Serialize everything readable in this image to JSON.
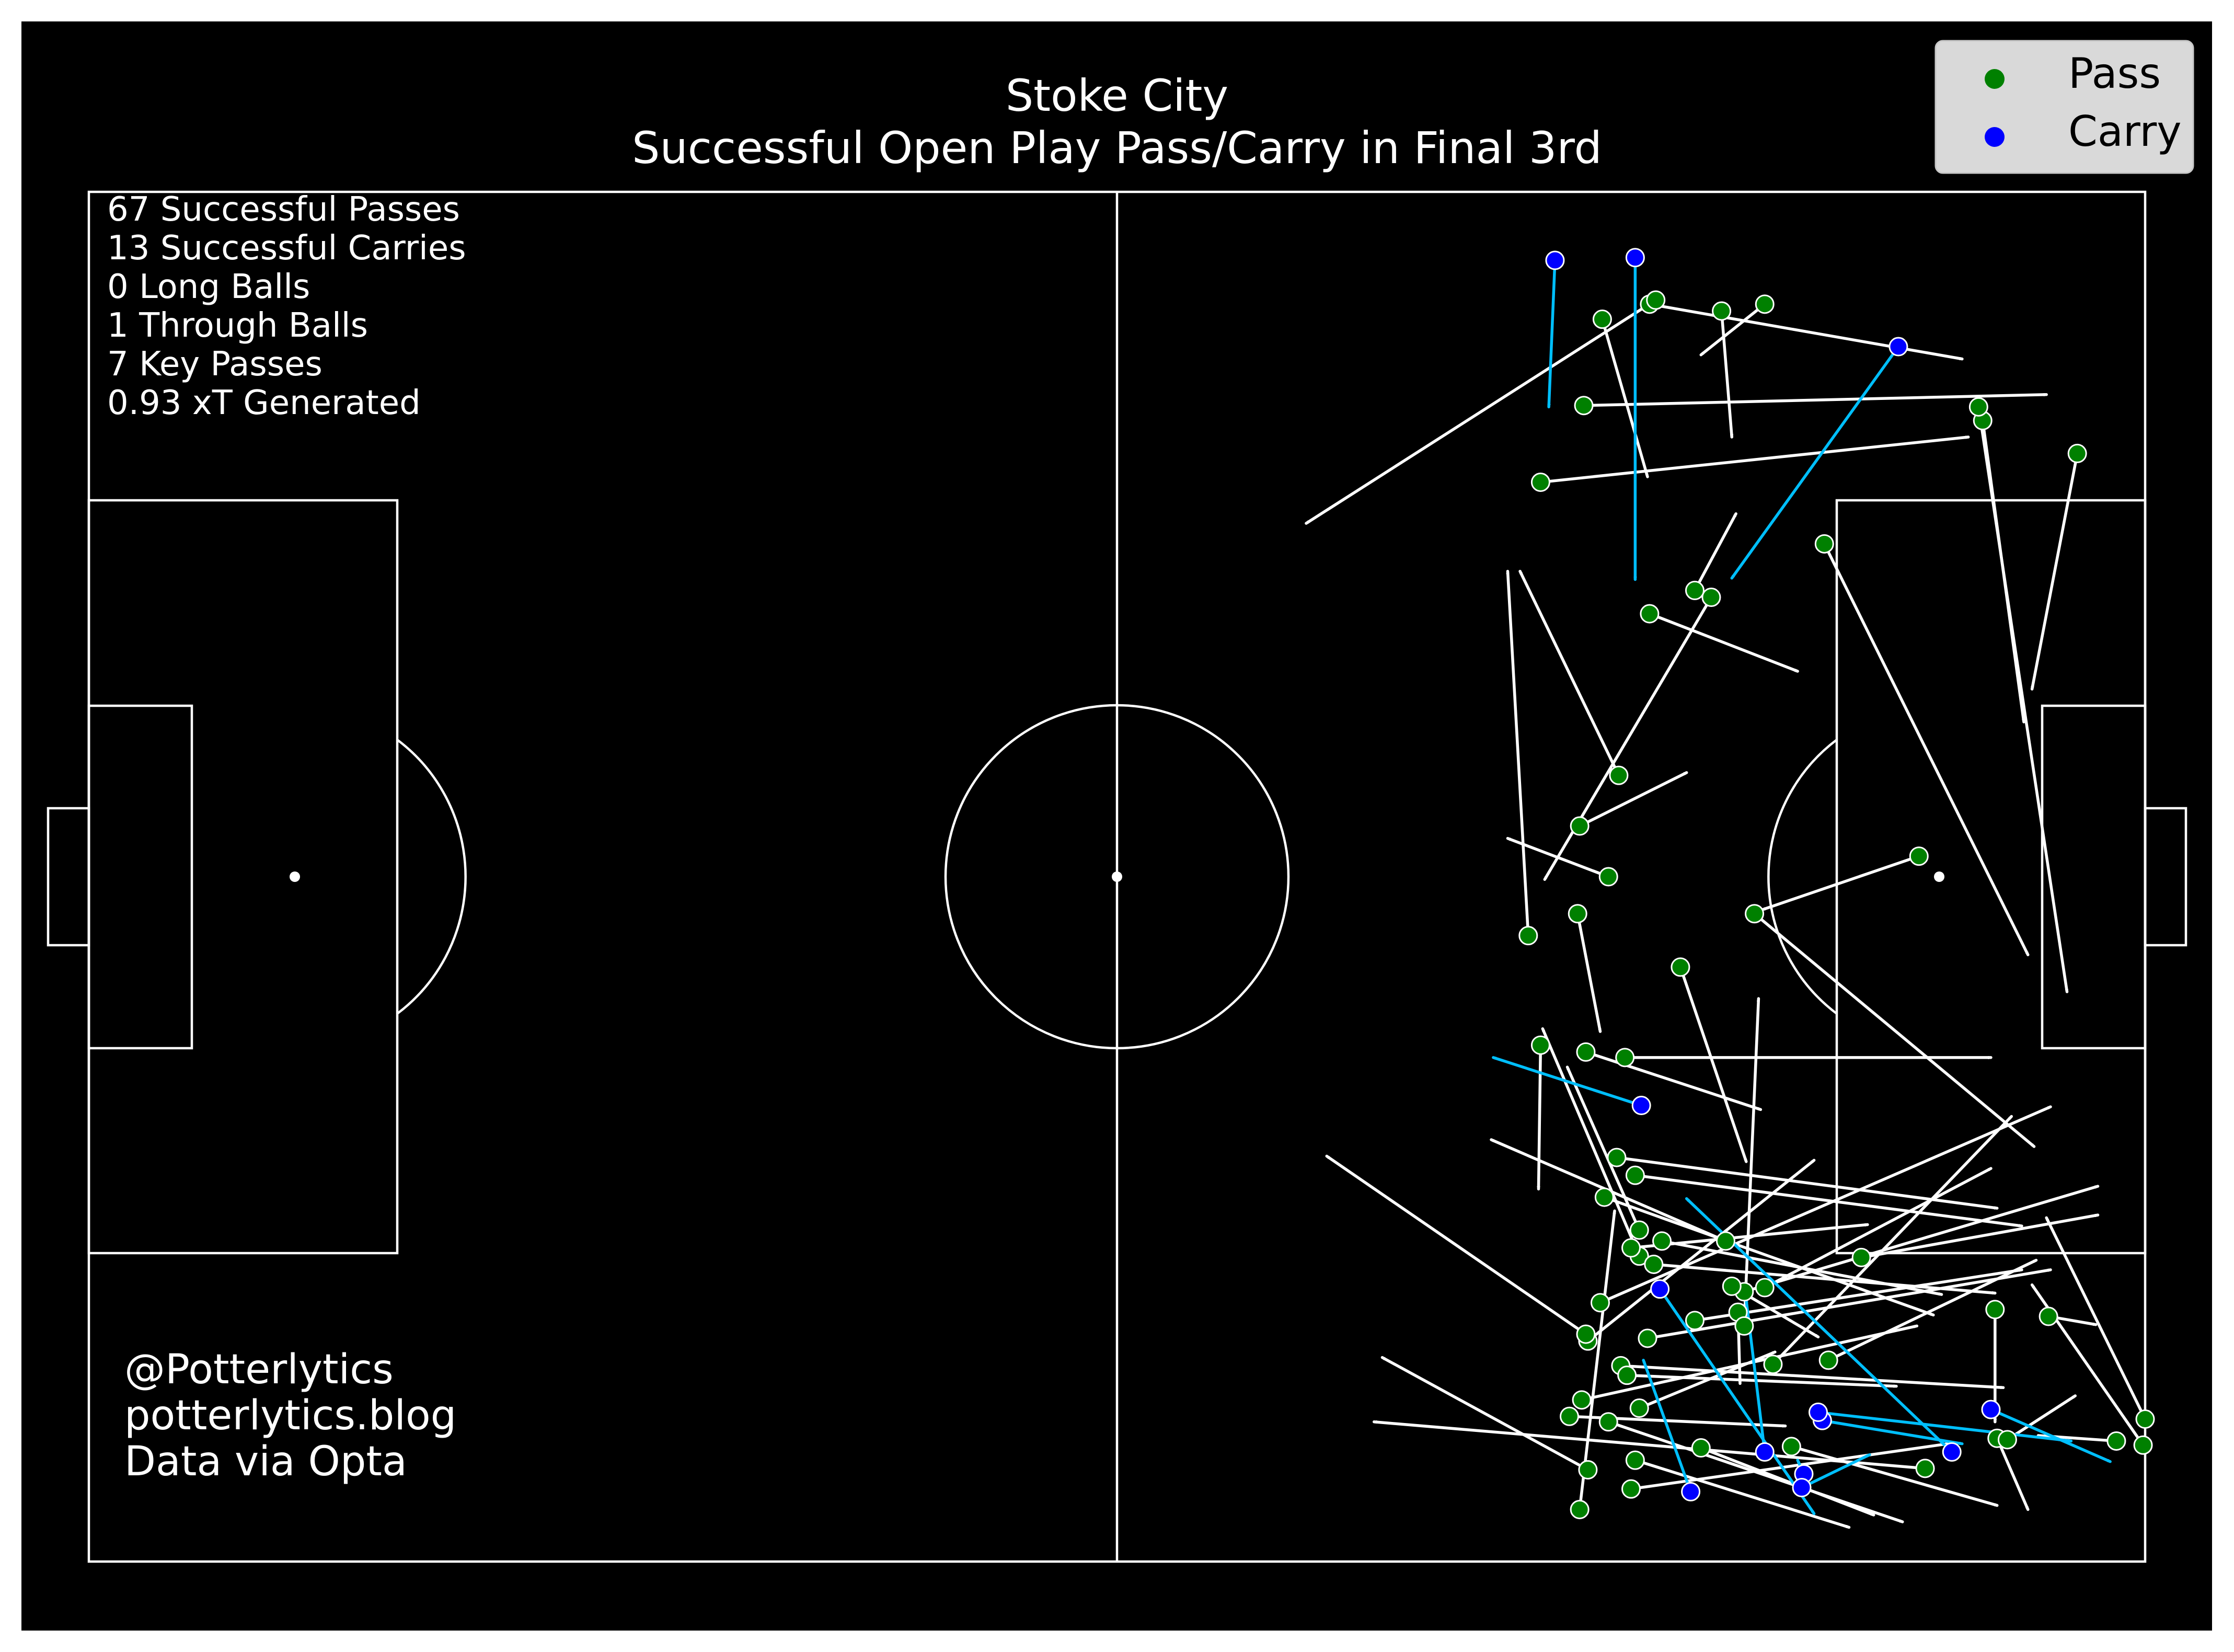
{
  "title": "Stoke City",
  "subtitle": "Successful Open Play Pass/Carry in Final 3rd",
  "stats": [
    "67 Successful Passes",
    "13 Successful Carries",
    "0 Long Balls",
    "1 Through Balls",
    "7 Key Passes",
    "0.93 xT Generated"
  ],
  "credits": [
    "@Potterlytics",
    "potterlytics.blog",
    "Data via Opta"
  ],
  "legend": [
    {
      "label": "Pass",
      "color": "#008000"
    },
    {
      "label": "Carry",
      "color": "#0000ff"
    }
  ],
  "colors": {
    "background": "#000000",
    "pitch_lines": "#ffffff",
    "pass_line": "#ffffff",
    "carry_line": "#00bfff",
    "pass_marker": "#008000",
    "carry_marker": "#0000ff",
    "legend_box": "#d9d9d9"
  },
  "chart_data": {
    "type": "scatter",
    "description_units": "pitch coordinates, x 0-100 toward attacking goal, y 0-100 bottom to top",
    "x_range": [
      0,
      100
    ],
    "y_range": [
      0,
      100
    ],
    "series": [
      {
        "name": "Pass",
        "points": [
          [
            75.9,
            91.8,
            91.1,
            87.8
          ],
          [
            73.6,
            90.7,
            75.8,
            79.2
          ],
          [
            79.4,
            91.3,
            79.9,
            82.1
          ],
          [
            72.7,
            84.4,
            95.2,
            85.2
          ],
          [
            70.6,
            78.8,
            91.4,
            82.1
          ],
          [
            81.5,
            91.8,
            78.4,
            88.1
          ],
          [
            76.2,
            92.1,
            59.2,
            75.8
          ],
          [
            92.1,
            83.3,
            94.1,
            61.3
          ],
          [
            91.9,
            84.3,
            96.2,
            41.6
          ],
          [
            96.7,
            80.9,
            94.5,
            63.7
          ],
          [
            84.4,
            74.3,
            94.3,
            44.3
          ],
          [
            75.9,
            69.2,
            83.1,
            65.0
          ],
          [
            78.9,
            70.4,
            70.8,
            49.8
          ],
          [
            72.5,
            53.7,
            77.7,
            57.6
          ],
          [
            78.1,
            70.9,
            80.1,
            76.5
          ],
          [
            74.4,
            57.4,
            69.6,
            72.3
          ],
          [
            73.9,
            50.0,
            69.0,
            52.8
          ],
          [
            72.4,
            47.3,
            73.5,
            38.7
          ],
          [
            70.0,
            45.7,
            69.0,
            72.3
          ],
          [
            89.0,
            51.5,
            81.4,
            47.6
          ],
          [
            81.0,
            47.3,
            94.6,
            30.3
          ],
          [
            77.4,
            43.4,
            80.6,
            29.2
          ],
          [
            70.6,
            37.7,
            70.5,
            27.2
          ],
          [
            72.8,
            37.2,
            81.3,
            33.0
          ],
          [
            74.7,
            36.8,
            92.5,
            36.8
          ],
          [
            74.3,
            29.5,
            92.8,
            25.8
          ],
          [
            75.4,
            24.2,
            71.9,
            36.1
          ],
          [
            73.7,
            26.6,
            89.7,
            18.0
          ],
          [
            75.4,
            22.3,
            70.7,
            38.9
          ],
          [
            72.9,
            16.1,
            83.9,
            29.3
          ],
          [
            73.5,
            18.9,
            95.4,
            33.2
          ],
          [
            75.0,
            22.9,
            86.5,
            24.6
          ],
          [
            79.6,
            23.4,
            68.2,
            30.8
          ],
          [
            76.1,
            21.7,
            92.7,
            19.6
          ],
          [
            76.5,
            23.4,
            90.1,
            19.5
          ],
          [
            80.5,
            19.7,
            97.7,
            27.4
          ],
          [
            79.9,
            20.1,
            84.1,
            16.4
          ],
          [
            81.5,
            20.0,
            92.5,
            28.7
          ],
          [
            74.5,
            14.3,
            93.1,
            12.7
          ],
          [
            75.8,
            16.3,
            95.4,
            21.3
          ],
          [
            86.2,
            22.2,
            97.7,
            25.3
          ],
          [
            80.2,
            18.2,
            80.3,
            13.0
          ],
          [
            80.5,
            17.2,
            81.2,
            41.1
          ],
          [
            78.1,
            17.6,
            94.0,
            21.3
          ],
          [
            72.8,
            16.6,
            60.2,
            29.6
          ],
          [
            72.0,
            10.6,
            82.5,
            9.9
          ],
          [
            72.6,
            11.8,
            88.9,
            17.2
          ],
          [
            74.8,
            13.6,
            87.9,
            12.8
          ],
          [
            75.4,
            11.2,
            82.0,
            15.3
          ],
          [
            72.9,
            6.7,
            62.9,
            14.9
          ],
          [
            75.2,
            7.4,
            85.6,
            2.5
          ],
          [
            75.0,
            5.3,
            90.4,
            8.6
          ],
          [
            73.9,
            10.2,
            88.2,
            2.9
          ],
          [
            72.5,
            3.8,
            74.2,
            25.6
          ],
          [
            78.4,
            8.3,
            86.8,
            3.4
          ],
          [
            82.8,
            8.4,
            92.8,
            4.1
          ],
          [
            89.3,
            6.8,
            62.5,
            10.2
          ],
          [
            92.8,
            9.0,
            94.3,
            3.8
          ],
          [
            93.3,
            8.9,
            96.6,
            12.1
          ],
          [
            92.7,
            18.4,
            92.7,
            10.2
          ],
          [
            95.3,
            17.9,
            97.6,
            17.3
          ],
          [
            98.6,
            8.8,
            94.8,
            9.2
          ],
          [
            99.9,
            8.5,
            94.5,
            20.2
          ],
          [
            100.0,
            10.4,
            95.2,
            25.1
          ],
          [
            84.6,
            14.7,
            94.7,
            22.0
          ],
          [
            81.9,
            14.4,
            93.5,
            32.5
          ],
          [
            75.2,
            28.2,
            94.0,
            24.5
          ]
        ]
      },
      {
        "name": "Carry",
        "points": [
          [
            71.3,
            95.0,
            71.0,
            84.3
          ],
          [
            75.2,
            95.2,
            75.2,
            71.7
          ],
          [
            88.0,
            88.7,
            79.9,
            71.8
          ],
          [
            75.5,
            33.3,
            68.3,
            36.8
          ],
          [
            76.4,
            19.9,
            83.9,
            3.5
          ],
          [
            77.9,
            5.1,
            75.6,
            14.7
          ],
          [
            81.5,
            8.0,
            80.6,
            19.1
          ],
          [
            83.4,
            6.4,
            83.1,
            7.4
          ],
          [
            83.3,
            5.4,
            86.6,
            7.8
          ],
          [
            84.3,
            10.3,
            91.1,
            8.6
          ],
          [
            84.1,
            10.9,
            96.4,
            8.8
          ],
          [
            92.5,
            11.1,
            98.3,
            7.3
          ],
          [
            90.6,
            8.0,
            77.7,
            26.5
          ]
        ]
      }
    ]
  }
}
